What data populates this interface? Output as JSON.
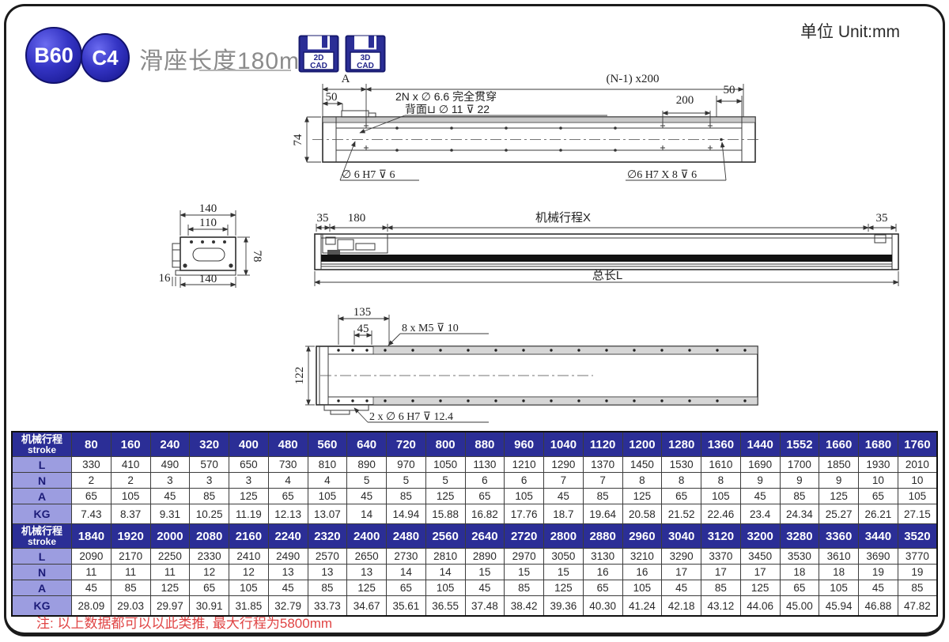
{
  "header": {
    "badge1": "B60",
    "badge2": "C4",
    "subtitle": "滑座长度180mm",
    "unit_label": "单位 Unit:mm",
    "cad_buttons": [
      {
        "line1": "2D",
        "line2": "CAD"
      },
      {
        "line1": "3D",
        "line2": "CAD"
      }
    ]
  },
  "drawings": {
    "top_view": {
      "dim_a": "A",
      "dim_50_left": "50",
      "dim_pitch": "(N-1) x200",
      "dim_200": "200",
      "dim_50_right": "50",
      "ann_through": "2N x ∅ 6.6 完全贯穿",
      "ann_back": "背面⊔ ∅ 11 ⊽ 22",
      "dim_74": "74",
      "ann_pin_left": "∅ 6 H7 ⊽ 6",
      "ann_pin_right": "∅6 H7 X 8 ⊽ 6"
    },
    "section_view": {
      "dim_140_top": "140",
      "dim_110": "110",
      "dim_78": "78",
      "dim_16": "16",
      "dim_140_bottom": "140"
    },
    "side_view": {
      "dim_35_left": "35",
      "dim_180": "180",
      "stroke_label": "机械行程X",
      "dim_35_right": "35",
      "total_label": "总长L"
    },
    "bottom_view": {
      "dim_135": "135",
      "dim_45": "45",
      "ann_m5": "8 x  M5  ⊽ 10",
      "dim_122": "122",
      "ann_pin": "2 x ∅ 6 H7 ⊽ 12.4"
    }
  },
  "table": {
    "header_label_line1": "机械行程",
    "header_label_line2": "stroke",
    "row_labels": [
      "L",
      "N",
      "A",
      "KG"
    ],
    "sections": [
      {
        "strokes": [
          "80",
          "160",
          "240",
          "320",
          "400",
          "480",
          "560",
          "640",
          "720",
          "800",
          "880",
          "960",
          "1040",
          "1120",
          "1200",
          "1280",
          "1360",
          "1440",
          "1552",
          "1660",
          "1680",
          "1760"
        ],
        "rows": {
          "L": [
            "330",
            "410",
            "490",
            "570",
            "650",
            "730",
            "810",
            "890",
            "970",
            "1050",
            "1130",
            "1210",
            "1290",
            "1370",
            "1450",
            "1530",
            "1610",
            "1690",
            "1700",
            "1850",
            "1930",
            "2010"
          ],
          "N": [
            "2",
            "2",
            "3",
            "3",
            "3",
            "4",
            "4",
            "5",
            "5",
            "5",
            "6",
            "6",
            "7",
            "7",
            "8",
            "8",
            "8",
            "9",
            "9",
            "9",
            "10",
            "10"
          ],
          "A": [
            "65",
            "105",
            "45",
            "85",
            "125",
            "65",
            "105",
            "45",
            "85",
            "125",
            "65",
            "105",
            "45",
            "85",
            "125",
            "65",
            "105",
            "45",
            "85",
            "125",
            "65",
            "105"
          ],
          "KG": [
            "7.43",
            "8.37",
            "9.31",
            "10.25",
            "11.19",
            "12.13",
            "13.07",
            "14",
            "14.94",
            "15.88",
            "16.82",
            "17.76",
            "18.7",
            "19.64",
            "20.58",
            "21.52",
            "22.46",
            "23.4",
            "24.34",
            "25.27",
            "26.21",
            "27.15"
          ]
        }
      },
      {
        "strokes": [
          "1840",
          "1920",
          "2000",
          "2080",
          "2160",
          "2240",
          "2320",
          "2400",
          "2480",
          "2560",
          "2640",
          "2720",
          "2800",
          "2880",
          "2960",
          "3040",
          "3120",
          "3200",
          "3280",
          "3360",
          "3440",
          "3520"
        ],
        "rows": {
          "L": [
            "2090",
            "2170",
            "2250",
            "2330",
            "2410",
            "2490",
            "2570",
            "2650",
            "2730",
            "2810",
            "2890",
            "2970",
            "3050",
            "3130",
            "3210",
            "3290",
            "3370",
            "3450",
            "3530",
            "3610",
            "3690",
            "3770"
          ],
          "N": [
            "11",
            "11",
            "11",
            "12",
            "12",
            "13",
            "13",
            "13",
            "14",
            "14",
            "15",
            "15",
            "15",
            "16",
            "16",
            "17",
            "17",
            "17",
            "18",
            "18",
            "19",
            "19"
          ],
          "A": [
            "45",
            "85",
            "125",
            "65",
            "105",
            "45",
            "85",
            "125",
            "65",
            "105",
            "45",
            "85",
            "125",
            "65",
            "105",
            "45",
            "85",
            "125",
            "65",
            "105",
            "45",
            "85"
          ],
          "KG": [
            "28.09",
            "29.03",
            "29.97",
            "30.91",
            "31.85",
            "32.79",
            "33.73",
            "34.67",
            "35.61",
            "36.55",
            "37.48",
            "38.42",
            "39.36",
            "40.30",
            "41.24",
            "42.18",
            "43.12",
            "44.06",
            "45.00",
            "45.94",
            "46.88",
            "47.82"
          ]
        }
      }
    ]
  },
  "footer": {
    "note": "注: 以上数据都可以以此类推, 最大行程为5800mm"
  }
}
